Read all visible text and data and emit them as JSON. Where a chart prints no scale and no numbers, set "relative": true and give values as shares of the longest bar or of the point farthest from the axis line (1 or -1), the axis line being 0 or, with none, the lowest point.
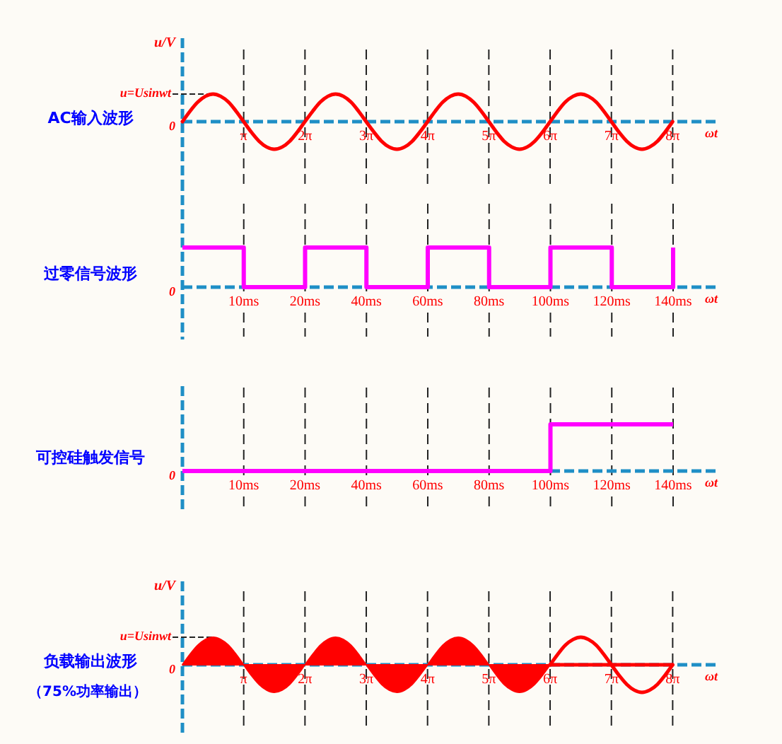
{
  "chart_data": [
    {
      "type": "line",
      "title": "AC输入波形",
      "ylabel": "u/V",
      "xlabel": "ωt",
      "relative": true,
      "x": [
        0,
        0.39,
        0.79,
        1.18,
        1.57,
        1.96,
        2.36,
        2.75,
        3.14,
        3.53,
        3.93,
        4.32,
        4.71,
        5.11,
        5.5,
        5.89,
        6.28,
        6.68,
        7.07,
        7.46,
        7.85,
        8.25,
        8.64,
        9.03,
        9.42,
        9.82,
        10.21,
        10.6,
        11.0,
        11.39,
        11.78,
        12.17,
        12.57,
        12.96,
        13.35,
        13.74,
        14.14,
        14.53,
        14.92,
        15.32,
        15.71,
        16.1,
        16.49,
        16.89,
        17.28,
        17.67,
        18.06,
        18.46,
        18.85,
        19.24,
        19.63,
        20.03,
        20.42,
        20.81,
        21.21,
        21.6,
        21.99,
        22.38,
        22.78,
        23.17,
        23.56,
        23.95,
        24.35,
        24.74,
        25.13
      ],
      "series": [
        {
          "color": "#ff0000",
          "values": [
            0,
            0.38,
            0.71,
            0.92,
            1,
            0.92,
            0.71,
            0.38,
            0,
            -0.38,
            -0.71,
            -0.92,
            -1,
            -0.92,
            -0.71,
            -0.38,
            0,
            0.38,
            0.71,
            0.92,
            1,
            0.92,
            0.71,
            0.38,
            0,
            -0.38,
            -0.71,
            -0.92,
            -1,
            -0.92,
            -0.71,
            -0.38,
            0,
            0.38,
            0.71,
            0.92,
            1,
            0.92,
            0.71,
            0.38,
            0,
            -0.38,
            -0.71,
            -0.92,
            -1,
            -0.92,
            -0.71,
            -0.38,
            0,
            0.38,
            0.71,
            0.92,
            1,
            0.92,
            0.71,
            0.38,
            0,
            -0.38,
            -0.71,
            -0.92,
            -1,
            -0.92,
            -0.71,
            -0.38,
            0
          ]
        }
      ],
      "xlim": [
        0,
        27.33
      ],
      "xticks": [
        {
          "value": 3.1416,
          "label": "π"
        },
        {
          "value": 6.2832,
          "label": "2π"
        },
        {
          "value": 9.4248,
          "label": "3π"
        },
        {
          "value": 12.5664,
          "label": "4π"
        },
        {
          "value": 15.708,
          "label": "5π"
        },
        {
          "value": 18.8496,
          "label": "6π"
        },
        {
          "value": 21.9911,
          "label": "7π"
        },
        {
          "value": 25.1327,
          "label": "8π"
        }
      ],
      "grid": "x",
      "ref_lines": [
        {
          "axis": "y",
          "value": 0,
          "color": "#1f8fc6",
          "line_style": "dashed"
        }
      ],
      "annotations": [
        "0",
        {
          "text": "u=Usinwt",
          "x": 1.57,
          "y": 1
        }
      ]
    },
    {
      "type": "step",
      "title": "过零信号波形",
      "xlabel": "ωt",
      "relative": true,
      "categories": [
        null,
        "10ms",
        "20ms",
        "40ms",
        "60ms",
        "80ms",
        "100ms",
        "120ms",
        "140ms"
      ],
      "series": [
        {
          "color": "#ff00ff",
          "values": [
            1,
            0,
            1,
            0,
            1,
            0,
            1,
            0,
            1
          ]
        }
      ],
      "grid": "x",
      "ref_lines": [
        {
          "axis": "y",
          "value": 0,
          "color": "#1f8fc6",
          "line_style": "dashed"
        }
      ],
      "annotations": [
        "0"
      ]
    },
    {
      "type": "step",
      "title": "可控硅触发信号",
      "xlabel": "ωt",
      "relative": true,
      "categories": [
        null,
        "10ms",
        "20ms",
        "40ms",
        "60ms",
        "80ms",
        "100ms",
        "120ms",
        "140ms"
      ],
      "series": [
        {
          "color": "#ff00ff",
          "values": [
            0,
            0,
            0,
            0,
            0,
            0,
            1,
            1,
            1
          ]
        }
      ],
      "grid": "x",
      "ref_lines": [
        {
          "axis": "y",
          "value": 0,
          "color": "#1f8fc6",
          "line_style": "dashed"
        }
      ],
      "annotations": [
        "0"
      ]
    },
    {
      "type": "area",
      "title": "负载输出波形",
      "subtitle": "（75%功率输出）",
      "ylabel": "u/V",
      "xlabel": "ωt",
      "relative": true,
      "series": [
        {
          "color": "#ff0000",
          "x": [
            0,
            0.39,
            0.79,
            1.18,
            1.57,
            1.96,
            2.36,
            2.75,
            3.14,
            3.53,
            3.93,
            4.32,
            4.71,
            5.11,
            5.5,
            5.89,
            6.28,
            6.68,
            7.07,
            7.46,
            7.85,
            8.25,
            8.64,
            9.03,
            9.42,
            9.82,
            10.21,
            10.6,
            11.0,
            11.39,
            11.78,
            12.17,
            12.57,
            12.96,
            13.35,
            13.74,
            14.14,
            14.53,
            14.92,
            15.32,
            15.71,
            16.1,
            16.49,
            16.89,
            17.28,
            17.67,
            18.06,
            18.46,
            18.85
          ],
          "values": [
            0,
            0.38,
            0.71,
            0.92,
            1,
            0.92,
            0.71,
            0.38,
            0,
            -0.38,
            -0.71,
            -0.92,
            -1,
            -0.92,
            -0.71,
            -0.38,
            0,
            0.38,
            0.71,
            0.92,
            1,
            0.92,
            0.71,
            0.38,
            0,
            -0.38,
            -0.71,
            -0.92,
            -1,
            -0.92,
            -0.71,
            -0.38,
            0,
            0.38,
            0.71,
            0.92,
            1,
            0.92,
            0.71,
            0.38,
            0,
            -0.38,
            -0.71,
            -0.92,
            -1,
            -0.92,
            -0.71,
            -0.38,
            0
          ]
        },
        {
          "type": "line",
          "color": "#ff0000",
          "x": [
            18.85,
            19.24,
            19.63,
            20.03,
            20.42,
            20.81,
            21.21,
            21.6,
            21.99,
            22.38,
            22.78,
            23.17,
            23.56,
            23.95,
            24.35,
            24.74,
            25.13
          ],
          "values": [
            0,
            0.38,
            0.71,
            0.92,
            1,
            0.92,
            0.71,
            0.38,
            0,
            -0.38,
            -0.71,
            -0.92,
            -1,
            -0.92,
            -0.71,
            -0.38,
            0
          ]
        },
        {
          "type": "line",
          "color": "#ff0000",
          "x": [
            18.85,
            25.13
          ],
          "values": [
            0,
            0
          ]
        }
      ],
      "xlim": [
        0,
        27.33
      ],
      "xticks": [
        {
          "value": 3.1416,
          "label": "π"
        },
        {
          "value": 6.2832,
          "label": "2π"
        },
        {
          "value": 9.4248,
          "label": "3π"
        },
        {
          "value": 12.5664,
          "label": "4π"
        },
        {
          "value": 15.708,
          "label": "5π"
        },
        {
          "value": 18.8496,
          "label": "6π"
        },
        {
          "value": 21.9911,
          "label": "7π"
        },
        {
          "value": 25.1327,
          "label": "8π"
        }
      ],
      "grid": "x",
      "ref_lines": [
        {
          "axis": "y",
          "value": 0,
          "color": "#1f8fc6",
          "line_style": "dashed"
        }
      ],
      "annotations": [
        "0",
        {
          "text": "u=Usinwt",
          "x": 1.57,
          "y": 1
        }
      ]
    }
  ]
}
